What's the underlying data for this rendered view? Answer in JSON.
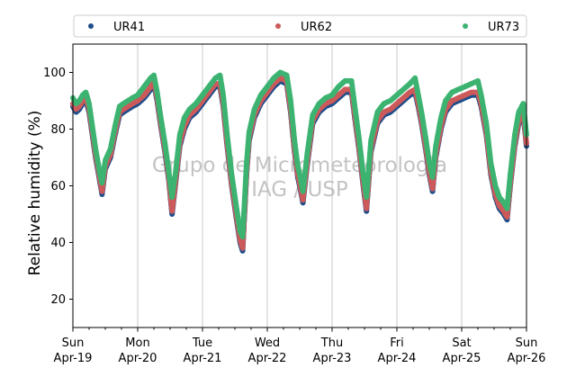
{
  "chart_data": {
    "type": "scatter",
    "ylabel": "Relative humidity (%)",
    "xlabel": "",
    "ylim": [
      10,
      110
    ],
    "xlim": [
      0,
      7
    ],
    "yticks": [
      20,
      40,
      60,
      80,
      100
    ],
    "xticks": [
      {
        "x": 0,
        "day": "Sun",
        "date": "Apr-19"
      },
      {
        "x": 1,
        "day": "Mon",
        "date": "Apr-20"
      },
      {
        "x": 2,
        "day": "Tue",
        "date": "Apr-21"
      },
      {
        "x": 3,
        "day": "Wed",
        "date": "Apr-22"
      },
      {
        "x": 4,
        "day": "Thu",
        "date": "Apr-23"
      },
      {
        "x": 5,
        "day": "Fri",
        "date": "Apr-24"
      },
      {
        "x": 6,
        "day": "Sat",
        "date": "Apr-25"
      },
      {
        "x": 7,
        "day": "Sun",
        "date": "Apr-26"
      }
    ],
    "grid": "vertical",
    "legend_position": "top",
    "watermark": [
      "Grupo de Micrometeorologia",
      "IAG / USP"
    ],
    "series": [
      {
        "name": "UR41",
        "color": "#1f4e8c",
        "points": [
          [
            0.0,
            88
          ],
          [
            0.05,
            86
          ],
          [
            0.1,
            87
          ],
          [
            0.15,
            89
          ],
          [
            0.2,
            90
          ],
          [
            0.25,
            86
          ],
          [
            0.3,
            78
          ],
          [
            0.35,
            70
          ],
          [
            0.42,
            61
          ],
          [
            0.45,
            57
          ],
          [
            0.5,
            66
          ],
          [
            0.58,
            70
          ],
          [
            0.65,
            78
          ],
          [
            0.72,
            85
          ],
          [
            0.78,
            86
          ],
          [
            0.85,
            87
          ],
          [
            0.92,
            88
          ],
          [
            1.0,
            89
          ],
          [
            1.1,
            91
          ],
          [
            1.2,
            94
          ],
          [
            1.25,
            96
          ],
          [
            1.3,
            90
          ],
          [
            1.35,
            82
          ],
          [
            1.42,
            72
          ],
          [
            1.48,
            62
          ],
          [
            1.53,
            50
          ],
          [
            1.58,
            60
          ],
          [
            1.65,
            74
          ],
          [
            1.72,
            80
          ],
          [
            1.8,
            84
          ],
          [
            1.9,
            86
          ],
          [
            2.0,
            89
          ],
          [
            2.1,
            92
          ],
          [
            2.2,
            95
          ],
          [
            2.27,
            95
          ],
          [
            2.32,
            88
          ],
          [
            2.38,
            74
          ],
          [
            2.45,
            60
          ],
          [
            2.52,
            49
          ],
          [
            2.58,
            40
          ],
          [
            2.62,
            37
          ],
          [
            2.68,
            64
          ],
          [
            2.72,
            76
          ],
          [
            2.8,
            84
          ],
          [
            2.9,
            89
          ],
          [
            3.0,
            92
          ],
          [
            3.1,
            95
          ],
          [
            3.2,
            97
          ],
          [
            3.3,
            96
          ],
          [
            3.36,
            86
          ],
          [
            3.42,
            72
          ],
          [
            3.47,
            63
          ],
          [
            3.5,
            60
          ],
          [
            3.55,
            54
          ],
          [
            3.62,
            68
          ],
          [
            3.7,
            82
          ],
          [
            3.8,
            86
          ],
          [
            3.9,
            88
          ],
          [
            4.0,
            89
          ],
          [
            4.1,
            91
          ],
          [
            4.2,
            93
          ],
          [
            4.3,
            93
          ],
          [
            4.35,
            84
          ],
          [
            4.42,
            72
          ],
          [
            4.48,
            60
          ],
          [
            4.53,
            51
          ],
          [
            4.6,
            72
          ],
          [
            4.7,
            82
          ],
          [
            4.8,
            85
          ],
          [
            4.9,
            86
          ],
          [
            5.0,
            88
          ],
          [
            5.1,
            90
          ],
          [
            5.2,
            92
          ],
          [
            5.28,
            93
          ],
          [
            5.33,
            88
          ],
          [
            5.38,
            82
          ],
          [
            5.45,
            72
          ],
          [
            5.5,
            64
          ],
          [
            5.55,
            58
          ],
          [
            5.6,
            70
          ],
          [
            5.68,
            80
          ],
          [
            5.75,
            86
          ],
          [
            5.85,
            89
          ],
          [
            5.95,
            90
          ],
          [
            6.05,
            91
          ],
          [
            6.15,
            92
          ],
          [
            6.25,
            92
          ],
          [
            6.3,
            88
          ],
          [
            6.38,
            78
          ],
          [
            6.45,
            64
          ],
          [
            6.52,
            56
          ],
          [
            6.58,
            52
          ],
          [
            6.65,
            50
          ],
          [
            6.7,
            48
          ],
          [
            6.75,
            60
          ],
          [
            6.82,
            74
          ],
          [
            6.88,
            82
          ],
          [
            6.95,
            85
          ],
          [
            7.0,
            74
          ]
        ]
      },
      {
        "name": "UR62",
        "color": "#cd5a5a",
        "points": [
          [
            0.0,
            89
          ],
          [
            0.05,
            87
          ],
          [
            0.1,
            88
          ],
          [
            0.15,
            90
          ],
          [
            0.2,
            91
          ],
          [
            0.25,
            87
          ],
          [
            0.3,
            79
          ],
          [
            0.35,
            71
          ],
          [
            0.42,
            62
          ],
          [
            0.45,
            58
          ],
          [
            0.5,
            67
          ],
          [
            0.58,
            71
          ],
          [
            0.65,
            79
          ],
          [
            0.72,
            86
          ],
          [
            0.78,
            87
          ],
          [
            0.85,
            88
          ],
          [
            0.92,
            89
          ],
          [
            1.0,
            90
          ],
          [
            1.1,
            92
          ],
          [
            1.2,
            95
          ],
          [
            1.25,
            97
          ],
          [
            1.3,
            91
          ],
          [
            1.35,
            83
          ],
          [
            1.42,
            73
          ],
          [
            1.48,
            63
          ],
          [
            1.53,
            51
          ],
          [
            1.58,
            61
          ],
          [
            1.65,
            75
          ],
          [
            1.72,
            81
          ],
          [
            1.8,
            85
          ],
          [
            1.9,
            87
          ],
          [
            2.0,
            90
          ],
          [
            2.1,
            93
          ],
          [
            2.2,
            96
          ],
          [
            2.27,
            96
          ],
          [
            2.32,
            89
          ],
          [
            2.38,
            75
          ],
          [
            2.45,
            61
          ],
          [
            2.52,
            50
          ],
          [
            2.58,
            41
          ],
          [
            2.62,
            38
          ],
          [
            2.68,
            65
          ],
          [
            2.72,
            77
          ],
          [
            2.8,
            85
          ],
          [
            2.9,
            90
          ],
          [
            3.0,
            93
          ],
          [
            3.1,
            96
          ],
          [
            3.2,
            98
          ],
          [
            3.3,
            97
          ],
          [
            3.36,
            87
          ],
          [
            3.42,
            73
          ],
          [
            3.47,
            64
          ],
          [
            3.5,
            61
          ],
          [
            3.55,
            55
          ],
          [
            3.62,
            69
          ],
          [
            3.7,
            83
          ],
          [
            3.8,
            87
          ],
          [
            3.9,
            89
          ],
          [
            4.0,
            90
          ],
          [
            4.1,
            92
          ],
          [
            4.2,
            94
          ],
          [
            4.3,
            94
          ],
          [
            4.35,
            85
          ],
          [
            4.42,
            73
          ],
          [
            4.48,
            61
          ],
          [
            4.53,
            52
          ],
          [
            4.6,
            73
          ],
          [
            4.7,
            83
          ],
          [
            4.8,
            86
          ],
          [
            4.9,
            87
          ],
          [
            5.0,
            89
          ],
          [
            5.1,
            91
          ],
          [
            5.2,
            93
          ],
          [
            5.28,
            94
          ],
          [
            5.33,
            89
          ],
          [
            5.38,
            83
          ],
          [
            5.45,
            73
          ],
          [
            5.5,
            65
          ],
          [
            5.55,
            59
          ],
          [
            5.6,
            71
          ],
          [
            5.68,
            81
          ],
          [
            5.75,
            87
          ],
          [
            5.85,
            90
          ],
          [
            5.95,
            91
          ],
          [
            6.05,
            92
          ],
          [
            6.15,
            93
          ],
          [
            6.25,
            93
          ],
          [
            6.3,
            89
          ],
          [
            6.38,
            79
          ],
          [
            6.45,
            65
          ],
          [
            6.52,
            57
          ],
          [
            6.58,
            53
          ],
          [
            6.65,
            51
          ],
          [
            6.7,
            49
          ],
          [
            6.75,
            61
          ],
          [
            6.82,
            75
          ],
          [
            6.88,
            83
          ],
          [
            6.95,
            86
          ],
          [
            7.0,
            75
          ]
        ]
      },
      {
        "name": "UR73",
        "color": "#3cb371",
        "points": [
          [
            0.0,
            91
          ],
          [
            0.05,
            89
          ],
          [
            0.1,
            90
          ],
          [
            0.15,
            92
          ],
          [
            0.2,
            93
          ],
          [
            0.25,
            89
          ],
          [
            0.3,
            81
          ],
          [
            0.35,
            73
          ],
          [
            0.42,
            64
          ],
          [
            0.45,
            61
          ],
          [
            0.5,
            69
          ],
          [
            0.58,
            73
          ],
          [
            0.65,
            81
          ],
          [
            0.72,
            88
          ],
          [
            0.78,
            89
          ],
          [
            0.85,
            90
          ],
          [
            0.92,
            91
          ],
          [
            1.0,
            92
          ],
          [
            1.1,
            95
          ],
          [
            1.2,
            98
          ],
          [
            1.25,
            99
          ],
          [
            1.3,
            93
          ],
          [
            1.35,
            85
          ],
          [
            1.42,
            75
          ],
          [
            1.48,
            65
          ],
          [
            1.53,
            56
          ],
          [
            1.58,
            64
          ],
          [
            1.65,
            78
          ],
          [
            1.72,
            84
          ],
          [
            1.8,
            87
          ],
          [
            1.9,
            89
          ],
          [
            2.0,
            92
          ],
          [
            2.1,
            95
          ],
          [
            2.2,
            98
          ],
          [
            2.27,
            99
          ],
          [
            2.32,
            92
          ],
          [
            2.38,
            78
          ],
          [
            2.45,
            64
          ],
          [
            2.52,
            53
          ],
          [
            2.58,
            44
          ],
          [
            2.62,
            42
          ],
          [
            2.68,
            68
          ],
          [
            2.72,
            79
          ],
          [
            2.8,
            87
          ],
          [
            2.9,
            92
          ],
          [
            3.0,
            95
          ],
          [
            3.1,
            98
          ],
          [
            3.2,
            100
          ],
          [
            3.3,
            99
          ],
          [
            3.36,
            90
          ],
          [
            3.42,
            76
          ],
          [
            3.47,
            67
          ],
          [
            3.5,
            64
          ],
          [
            3.55,
            58
          ],
          [
            3.62,
            72
          ],
          [
            3.7,
            85
          ],
          [
            3.8,
            89
          ],
          [
            3.9,
            91
          ],
          [
            4.0,
            92
          ],
          [
            4.1,
            95
          ],
          [
            4.2,
            97
          ],
          [
            4.3,
            97
          ],
          [
            4.35,
            88
          ],
          [
            4.42,
            76
          ],
          [
            4.48,
            64
          ],
          [
            4.53,
            56
          ],
          [
            4.6,
            76
          ],
          [
            4.7,
            86
          ],
          [
            4.8,
            89
          ],
          [
            4.9,
            90
          ],
          [
            5.0,
            92
          ],
          [
            5.1,
            94
          ],
          [
            5.2,
            96
          ],
          [
            5.28,
            98
          ],
          [
            5.33,
            92
          ],
          [
            5.38,
            86
          ],
          [
            5.45,
            76
          ],
          [
            5.5,
            68
          ],
          [
            5.55,
            63
          ],
          [
            5.6,
            74
          ],
          [
            5.68,
            84
          ],
          [
            5.75,
            90
          ],
          [
            5.85,
            93
          ],
          [
            5.95,
            94
          ],
          [
            6.05,
            95
          ],
          [
            6.15,
            96
          ],
          [
            6.25,
            97
          ],
          [
            6.3,
            92
          ],
          [
            6.38,
            82
          ],
          [
            6.45,
            68
          ],
          [
            6.52,
            60
          ],
          [
            6.58,
            56
          ],
          [
            6.65,
            54
          ],
          [
            6.7,
            52
          ],
          [
            6.75,
            64
          ],
          [
            6.82,
            78
          ],
          [
            6.88,
            86
          ],
          [
            6.95,
            89
          ],
          [
            7.0,
            78
          ]
        ]
      }
    ]
  }
}
